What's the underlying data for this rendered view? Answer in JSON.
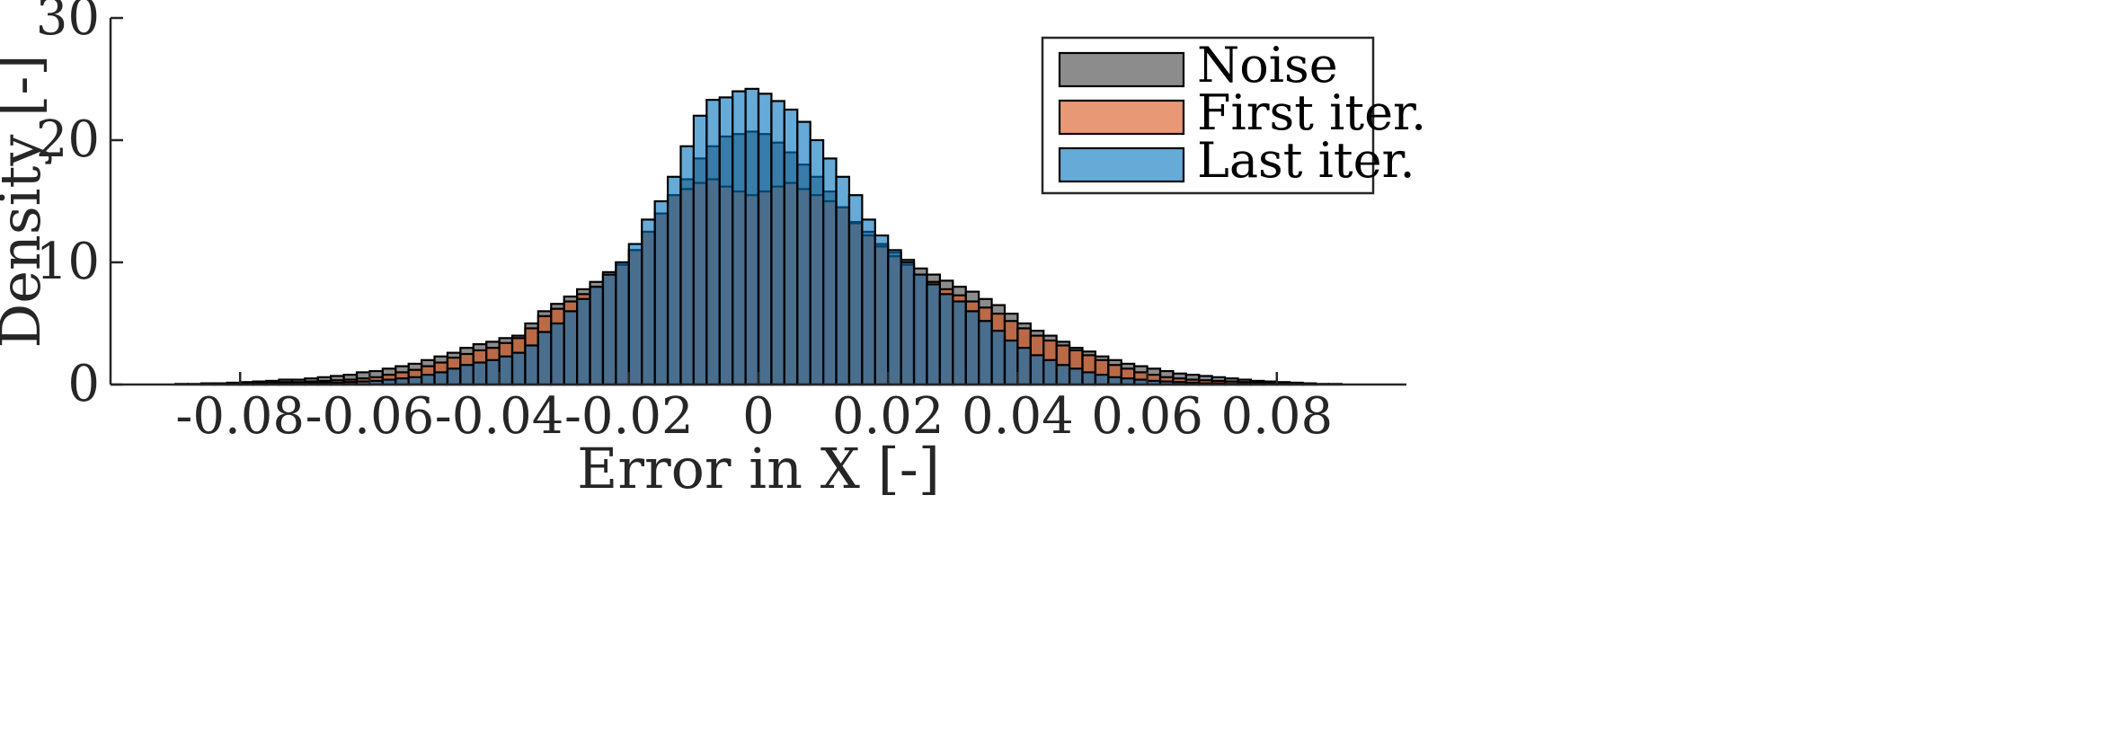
{
  "chart_data": {
    "type": "bar",
    "title": "",
    "xlabel": "Error in X [-]",
    "ylabel": "Density [-]",
    "xlim": [
      -0.1,
      0.1
    ],
    "ylim": [
      0,
      30
    ],
    "x_ticks": [
      "-0.08",
      "-0.06",
      "-0.04",
      "-0.02",
      "0",
      "0.02",
      "0.04",
      "0.06",
      "0.08"
    ],
    "y_ticks": [
      "0",
      "10",
      "20",
      "30"
    ],
    "grid": false,
    "legend_position": "top-right",
    "bin_width": 0.002,
    "bin_centers": [
      -0.089,
      -0.087,
      -0.085,
      -0.083,
      -0.081,
      -0.079,
      -0.077,
      -0.075,
      -0.073,
      -0.071,
      -0.069,
      -0.067,
      -0.065,
      -0.063,
      -0.061,
      -0.059,
      -0.057,
      -0.055,
      -0.053,
      -0.051,
      -0.049,
      -0.047,
      -0.045,
      -0.043,
      -0.041,
      -0.039,
      -0.037,
      -0.035,
      -0.033,
      -0.031,
      -0.029,
      -0.027,
      -0.025,
      -0.023,
      -0.021,
      -0.019,
      -0.017,
      -0.015,
      -0.013,
      -0.011,
      -0.009,
      -0.007,
      -0.005,
      -0.003,
      -0.001,
      0.001,
      0.003,
      0.005,
      0.007,
      0.009,
      0.011,
      0.013,
      0.015,
      0.017,
      0.019,
      0.021,
      0.023,
      0.025,
      0.027,
      0.029,
      0.031,
      0.033,
      0.035,
      0.037,
      0.039,
      0.041,
      0.043,
      0.045,
      0.047,
      0.049,
      0.051,
      0.053,
      0.055,
      0.057,
      0.059,
      0.061,
      0.063,
      0.065,
      0.067,
      0.069,
      0.071,
      0.073,
      0.075,
      0.077,
      0.079,
      0.081,
      0.083,
      0.085,
      0.087,
      0.089
    ],
    "series": [
      {
        "name": "Noise",
        "color": "#404040",
        "values": [
          0.05,
          0.05,
          0.1,
          0.1,
          0.15,
          0.2,
          0.25,
          0.3,
          0.4,
          0.4,
          0.5,
          0.6,
          0.7,
          0.8,
          1.0,
          1.1,
          1.3,
          1.5,
          1.7,
          2.0,
          2.3,
          2.6,
          3.0,
          3.3,
          3.5,
          3.8,
          4.0,
          5.0,
          6.0,
          6.6,
          7.2,
          7.8,
          8.4,
          9.2,
          10.0,
          11.0,
          12.5,
          14.0,
          15.5,
          16.8,
          18.5,
          19.5,
          20.3,
          20.5,
          20.7,
          20.5,
          19.8,
          19.0,
          18.0,
          17.0,
          15.8,
          14.5,
          13.3,
          12.5,
          11.5,
          10.8,
          10.2,
          9.5,
          9.0,
          8.5,
          8.0,
          7.6,
          7.0,
          6.5,
          5.8,
          5.0,
          4.4,
          4.0,
          3.5,
          3.0,
          2.7,
          2.3,
          2.0,
          1.7,
          1.5,
          1.3,
          1.1,
          0.9,
          0.8,
          0.7,
          0.6,
          0.5,
          0.4,
          0.3,
          0.25,
          0.2,
          0.15,
          0.1,
          0.05,
          0.05
        ]
      },
      {
        "name": "First iter.",
        "color": "#d95319",
        "values": [
          0.0,
          0.0,
          0.05,
          0.05,
          0.05,
          0.1,
          0.1,
          0.15,
          0.2,
          0.2,
          0.25,
          0.3,
          0.35,
          0.4,
          0.5,
          0.6,
          0.8,
          1.0,
          1.2,
          1.5,
          1.8,
          2.2,
          2.5,
          2.8,
          3.0,
          3.4,
          3.8,
          4.6,
          5.6,
          6.2,
          6.8,
          7.4,
          8.0,
          9.0,
          9.8,
          11.0,
          12.5,
          14.0,
          15.5,
          16.0,
          16.5,
          16.8,
          16.2,
          15.8,
          15.5,
          15.8,
          16.2,
          16.5,
          16.0,
          15.5,
          15.0,
          14.5,
          13.2,
          12.2,
          11.3,
          10.5,
          9.8,
          9.0,
          8.4,
          7.8,
          7.3,
          6.8,
          6.3,
          5.8,
          5.2,
          4.6,
          4.0,
          3.6,
          3.2,
          2.8,
          2.4,
          2.0,
          1.6,
          1.3,
          1.0,
          0.8,
          0.6,
          0.5,
          0.4,
          0.35,
          0.3,
          0.25,
          0.2,
          0.15,
          0.1,
          0.1,
          0.05,
          0.05,
          0.0,
          0.0
        ]
      },
      {
        "name": "Last iter.",
        "color": "#0072bd",
        "values": [
          0.0,
          0.0,
          0.0,
          0.0,
          0.05,
          0.05,
          0.05,
          0.05,
          0.1,
          0.1,
          0.1,
          0.15,
          0.15,
          0.2,
          0.25,
          0.3,
          0.4,
          0.5,
          0.6,
          0.8,
          1.0,
          1.3,
          1.6,
          1.8,
          2.0,
          2.3,
          2.6,
          3.2,
          4.3,
          5.0,
          6.0,
          7.0,
          8.0,
          9.0,
          10.0,
          11.5,
          13.5,
          15.0,
          17.0,
          19.5,
          22.0,
          23.3,
          23.5,
          24.0,
          24.2,
          23.8,
          23.2,
          22.5,
          21.5,
          20.0,
          18.5,
          17.0,
          15.5,
          13.5,
          12.2,
          11.0,
          10.0,
          9.0,
          8.2,
          7.4,
          6.8,
          6.0,
          5.2,
          4.4,
          3.6,
          3.0,
          2.4,
          2.0,
          1.6,
          1.3,
          1.0,
          0.8,
          0.6,
          0.5,
          0.4,
          0.3,
          0.25,
          0.2,
          0.15,
          0.1,
          0.1,
          0.05,
          0.05,
          0.05,
          0.0,
          0.0,
          0.0,
          0.0,
          0.0,
          0.0
        ]
      }
    ]
  }
}
